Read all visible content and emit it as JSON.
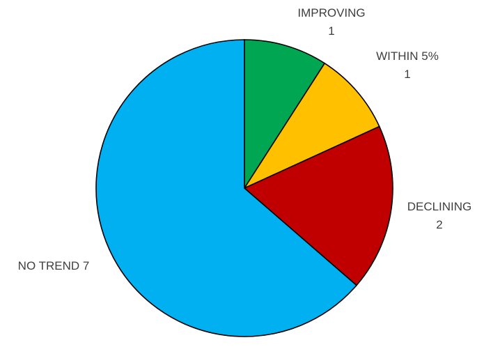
{
  "chart_data": {
    "type": "pie",
    "title": "",
    "slices": [
      {
        "label": "IMPROVING",
        "value": 1,
        "value_text": "1",
        "color": "#00a651"
      },
      {
        "label": "WITHIN 5%",
        "value": 1,
        "value_text": "1",
        "color": "#ffc000"
      },
      {
        "label": "DECLINING",
        "value": 2,
        "value_text": "2",
        "color": "#c00000"
      },
      {
        "label": "NO TREND",
        "value": 7,
        "value_text": "7",
        "color": "#00b0f0"
      }
    ],
    "start_angle_deg": 0,
    "direction": "clockwise"
  }
}
